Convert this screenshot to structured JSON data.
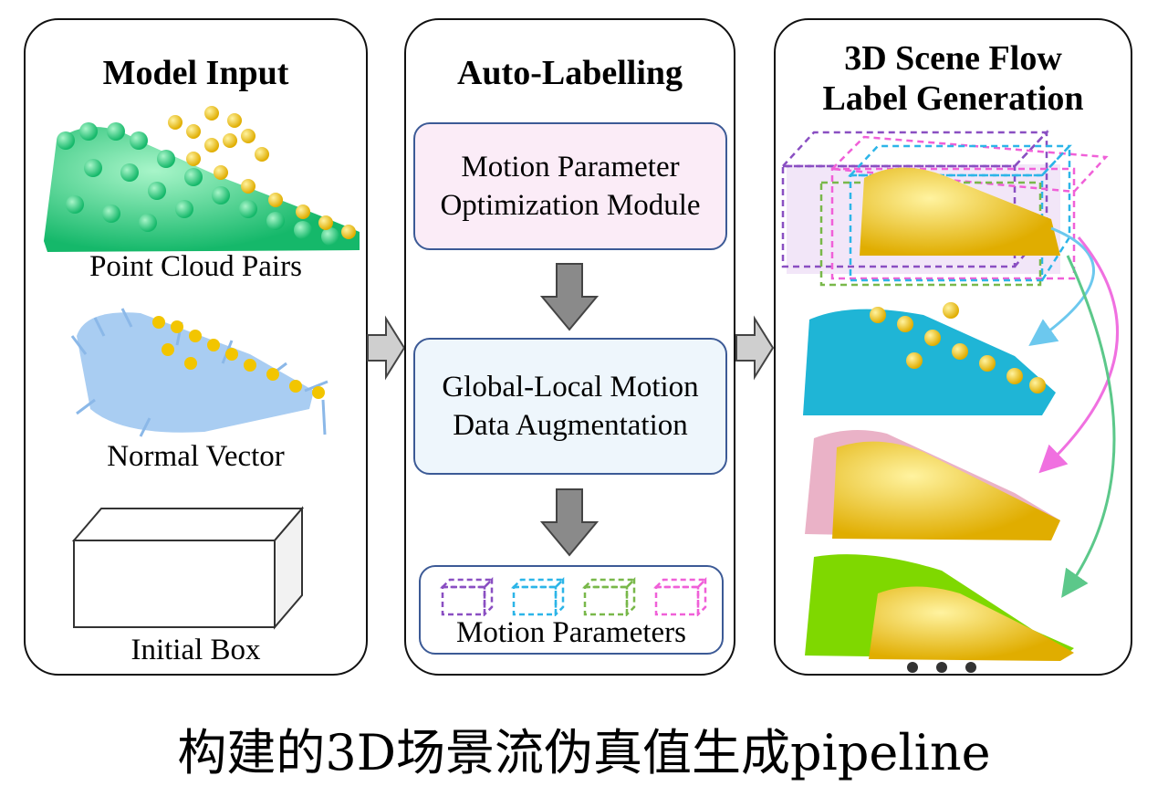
{
  "panels": {
    "input": {
      "title": "Model Input",
      "items": [
        {
          "label": "Point Cloud Pairs"
        },
        {
          "label": "Normal Vector"
        },
        {
          "label": "Initial Box"
        }
      ]
    },
    "auto": {
      "title": "Auto-Labelling",
      "module1": "Motion Parameter\nOptimization Module",
      "module2": "Global-Local Motion\nData Augmentation",
      "params_label": "Motion Parameters"
    },
    "output": {
      "title": "3D Scene Flow\nLabel Generation"
    }
  },
  "footer": "构建的3D场景流伪真值生成pipeline",
  "colors": {
    "green_points": "#27d17f",
    "yellow_points": "#f2c500",
    "blue_arrows": "#9cc6ef",
    "cyan_points": "#1fb5d6",
    "pink_points": "#eab2c7",
    "lime_points": "#7fd800",
    "box_purple": "#8a4fc2",
    "box_cyan": "#2cb5e8",
    "box_green": "#79b84a",
    "box_magenta": "#f060d8",
    "module_border": "#3c5a96",
    "module1_fill": "#fbecf7",
    "module2_fill": "#eef6fc"
  },
  "icons": [
    "right-arrow-icon",
    "down-arrow-icon",
    "ellipsis-icon"
  ]
}
